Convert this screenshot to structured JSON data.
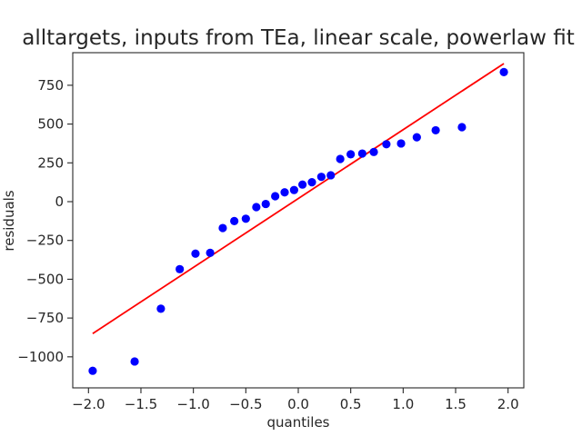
{
  "chart_data": {
    "type": "scatter",
    "title": "alltargets, inputs from TEa, linear scale, powerlaw fit",
    "xlabel": "quantiles",
    "ylabel": "residuals",
    "xlim": [
      -2.15,
      2.15
    ],
    "ylim": [
      -1200,
      960
    ],
    "xticks": [
      -2.0,
      -1.5,
      -1.0,
      -0.5,
      0.0,
      0.5,
      1.0,
      1.5,
      2.0
    ],
    "xtick_labels": [
      "−2.0",
      "−1.5",
      "−1.0",
      "−0.5",
      "0.0",
      "0.5",
      "1.0",
      "1.5",
      "2.0"
    ],
    "yticks": [
      -1000,
      -750,
      -500,
      -250,
      0,
      250,
      500,
      750
    ],
    "ytick_labels": [
      "−1000",
      "−750",
      "−500",
      "−250",
      "0",
      "250",
      "500",
      "750"
    ],
    "grid": false,
    "colors": {
      "points": "#0000ff",
      "fit_line": "#ff0000",
      "axes": "#262626"
    },
    "series": [
      {
        "kind": "points",
        "x": [
          -1.96,
          -1.56,
          -1.31,
          -1.13,
          -0.98,
          -0.84,
          -0.72,
          -0.61,
          -0.5,
          -0.4,
          -0.31,
          -0.22,
          -0.13,
          -0.04,
          0.04,
          0.13,
          0.22,
          0.31,
          0.4,
          0.5,
          0.61,
          0.72,
          0.84,
          0.98,
          1.13,
          1.31,
          1.56,
          1.96
        ],
        "y": [
          -1090,
          -1030,
          -690,
          -435,
          -335,
          -330,
          -170,
          -125,
          -110,
          -35,
          -15,
          35,
          60,
          75,
          110,
          125,
          160,
          170,
          275,
          305,
          310,
          320,
          370,
          375,
          415,
          460,
          480,
          835
        ]
      },
      {
        "kind": "fit-line",
        "x": [
          -1.96,
          1.96
        ],
        "y": [
          -850,
          890
        ]
      }
    ]
  }
}
